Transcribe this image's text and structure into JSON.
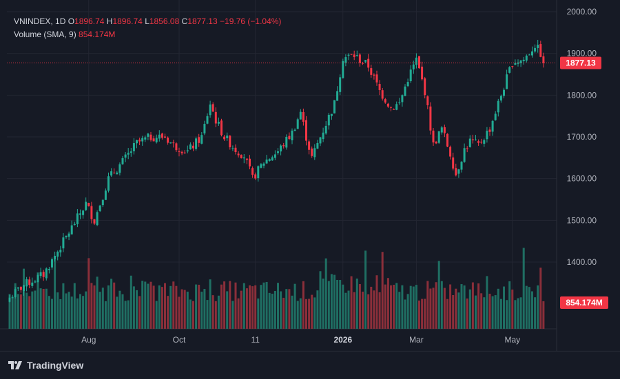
{
  "legend": {
    "symbol": "VNINDEX",
    "interval": "1D",
    "open_label": "O",
    "open": "1896.74",
    "high_label": "H",
    "high": "1896.74",
    "low_label": "L",
    "low": "1856.08",
    "close_label": "C",
    "close": "1877.13",
    "change": "−19.76 (−1.04%)",
    "volume_label": "Volume (SMA, 9)",
    "volume_value": "854.174M"
  },
  "brand": {
    "name": "TradingView"
  },
  "colors": {
    "up": "#22ab94",
    "down": "#f23645",
    "bg": "#161a25",
    "grid": "#232632",
    "axis_text": "#b2b5be"
  },
  "chart_data": {
    "type": "candlestick",
    "y_axis": {
      "min": 1300,
      "max": 2000,
      "ticks": [
        2000,
        1900,
        1800,
        1700,
        1600,
        1500,
        1400
      ],
      "tick_labels": [
        "2000.00",
        "1900.00",
        "1800.00",
        "1700.00",
        "1600.00",
        "1500.00",
        "1400.00"
      ]
    },
    "x_axis": {
      "labels": [
        "Aug",
        "Oct",
        "11",
        "2026",
        "Mar",
        "May"
      ],
      "bold_labels": [
        "2026"
      ],
      "label_bar_index": [
        28,
        60,
        87,
        118,
        144,
        178
      ]
    },
    "last_price": 1877.13,
    "last_price_label": "1877.13",
    "last_volume_label": "854.174M",
    "n_bars": 190,
    "path_knots": [
      [
        0,
        1315
      ],
      [
        5,
        1345
      ],
      [
        12,
        1370
      ],
      [
        20,
        1460
      ],
      [
        27,
        1540
      ],
      [
        30,
        1500
      ],
      [
        35,
        1600
      ],
      [
        40,
        1640
      ],
      [
        45,
        1685
      ],
      [
        50,
        1700
      ],
      [
        55,
        1700
      ],
      [
        58,
        1680
      ],
      [
        63,
        1665
      ],
      [
        68,
        1700
      ],
      [
        71,
        1780
      ],
      [
        73,
        1740
      ],
      [
        76,
        1700
      ],
      [
        80,
        1670
      ],
      [
        83,
        1655
      ],
      [
        86,
        1600
      ],
      [
        90,
        1640
      ],
      [
        95,
        1665
      ],
      [
        100,
        1710
      ],
      [
        103,
        1760
      ],
      [
        105,
        1700
      ],
      [
        107,
        1650
      ],
      [
        110,
        1700
      ],
      [
        115,
        1780
      ],
      [
        118,
        1890
      ],
      [
        122,
        1895
      ],
      [
        127,
        1870
      ],
      [
        131,
        1810
      ],
      [
        135,
        1770
      ],
      [
        138,
        1780
      ],
      [
        141,
        1840
      ],
      [
        144,
        1885
      ],
      [
        147,
        1810
      ],
      [
        150,
        1680
      ],
      [
        153,
        1720
      ],
      [
        156,
        1660
      ],
      [
        158,
        1610
      ],
      [
        161,
        1670
      ],
      [
        163,
        1690
      ],
      [
        166,
        1680
      ],
      [
        170,
        1720
      ],
      [
        175,
        1820
      ],
      [
        178,
        1880
      ],
      [
        182,
        1885
      ],
      [
        186,
        1920
      ],
      [
        188,
        1900
      ],
      [
        189,
        1877
      ]
    ]
  }
}
